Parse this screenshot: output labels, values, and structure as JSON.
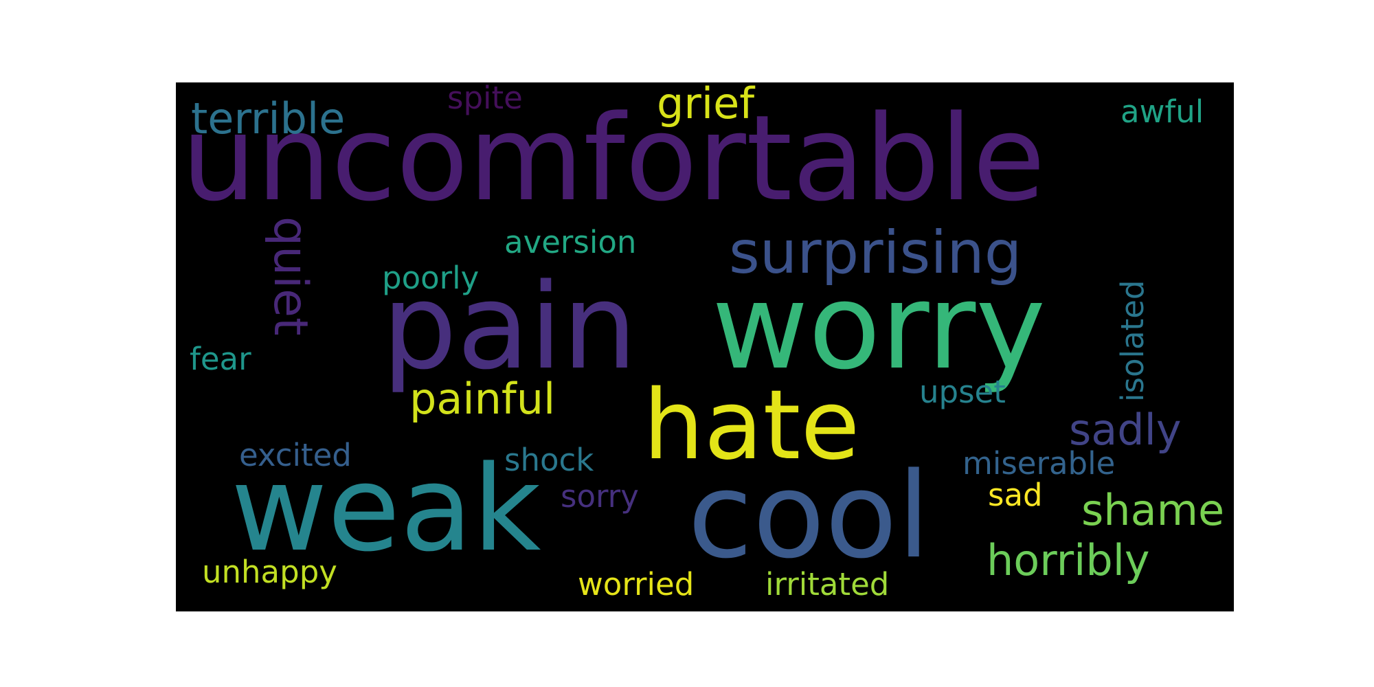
{
  "word_cloud": {
    "background": "#000000",
    "words": [
      {
        "text": "uncomfortable",
        "color": "#481d6f"
      },
      {
        "text": "pain",
        "color": "#472f7d"
      },
      {
        "text": "worry",
        "color": "#35b779"
      },
      {
        "text": "hate",
        "color": "#e3e418"
      },
      {
        "text": "weak",
        "color": "#25858e"
      },
      {
        "text": "cool",
        "color": "#3b5a8c"
      },
      {
        "text": "surprising",
        "color": "#3b528b"
      },
      {
        "text": "terrible",
        "color": "#2c728e"
      },
      {
        "text": "grief",
        "color": "#d8e219"
      },
      {
        "text": "spite",
        "color": "#440f5a"
      },
      {
        "text": "awful",
        "color": "#20a386"
      },
      {
        "text": "quiet",
        "color": "#482878"
      },
      {
        "text": "aversion",
        "color": "#22a884"
      },
      {
        "text": "poorly",
        "color": "#1fa088"
      },
      {
        "text": "isolated",
        "color": "#2a768e"
      },
      {
        "text": "fear",
        "color": "#1f968b"
      },
      {
        "text": "painful",
        "color": "#d2e21b"
      },
      {
        "text": "upset",
        "color": "#26828e"
      },
      {
        "text": "sadly",
        "color": "#414487"
      },
      {
        "text": "excited",
        "color": "#355f8d"
      },
      {
        "text": "shock",
        "color": "#2a788e"
      },
      {
        "text": "miserable",
        "color": "#33638d"
      },
      {
        "text": "sorry",
        "color": "#46307e"
      },
      {
        "text": "sad",
        "color": "#fde725"
      },
      {
        "text": "shame",
        "color": "#7ad151"
      },
      {
        "text": "horribly",
        "color": "#6ccd5a"
      },
      {
        "text": "unhappy",
        "color": "#c2df23"
      },
      {
        "text": "worried",
        "color": "#e5e419"
      },
      {
        "text": "irritated",
        "color": "#a0da39"
      }
    ]
  }
}
